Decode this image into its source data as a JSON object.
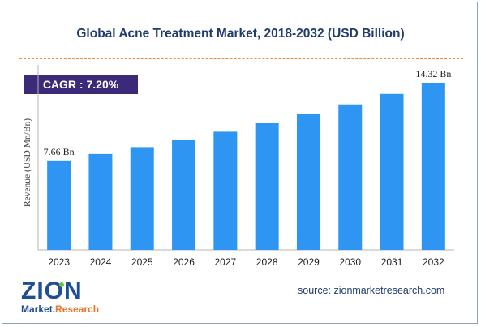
{
  "header": {
    "title": "Global Acne Treatment Market, 2018-2032 (USD Billion)"
  },
  "badge": {
    "label": "CAGR :",
    "value": "7.20%"
  },
  "footer": {
    "source": "source: zionmarketresearch.com",
    "logo_top": "ZION",
    "logo_bottom_left": "Market.",
    "logo_bottom_right": "Research"
  },
  "colors": {
    "bar": "#2e96f2",
    "title": "#1f3b70",
    "badge": "#3c2a78",
    "dash": "#f08a3c"
  },
  "chart_data": {
    "type": "bar",
    "title": "Global Acne Treatment Market, 2018-2032 (USD Billion)",
    "xlabel": "",
    "ylabel": "Revenue (USD Mn/Bn)",
    "categories": [
      "2023",
      "2024",
      "2025",
      "2026",
      "2027",
      "2028",
      "2029",
      "2030",
      "2031",
      "2032"
    ],
    "values": [
      7.66,
      8.21,
      8.8,
      9.44,
      10.12,
      10.85,
      11.63,
      12.46,
      13.36,
      14.32
    ],
    "data_labels": [
      {
        "index": 0,
        "text": "7.66 Bn"
      },
      {
        "index": 9,
        "text": "14.32 Bn"
      }
    ],
    "ylim": [
      0,
      15.5
    ],
    "grid": false,
    "legend": "none"
  }
}
